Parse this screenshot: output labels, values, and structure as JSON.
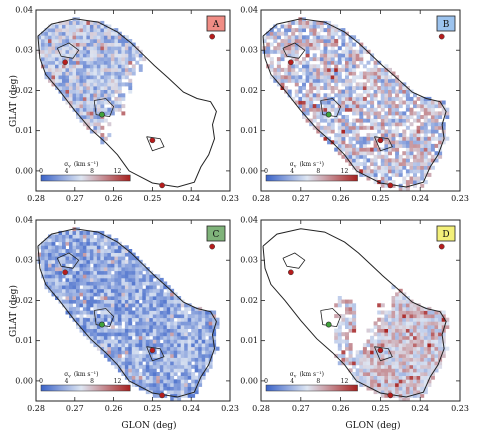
{
  "figure": {
    "xlabel": "GLON (deg)",
    "ylabel": "GLAT (deg)",
    "colorbar_label": "σ",
    "colorbar_label_sub": "v",
    "colorbar_label_unit": "(km s⁻¹)",
    "colorbar_ticks": [
      "0",
      "4",
      "8",
      "12"
    ]
  },
  "colors": {
    "panel_A": "#f08d85",
    "panel_B": "#9cc3ee",
    "panel_C": "#7fb37a",
    "panel_D": "#f3f07a",
    "map_low": "#3b63c8",
    "map_mid": "#dde5f2",
    "map_high": "#a8211f"
  },
  "chart_data": [
    {
      "type": "heatmap",
      "panel": "A",
      "xlabel": "",
      "ylabel": "GLAT (deg)",
      "xlim": [
        0.28,
        0.23
      ],
      "ylim": [
        -0.005,
        0.04
      ],
      "xticks": [
        "0.28",
        "0.27",
        "0.26",
        "0.25",
        "0.24",
        "0.23"
      ],
      "yticks": [
        "0.00",
        "0.01",
        "0.02",
        "0.03",
        "0.04"
      ],
      "colorbar": {
        "range": [
          0,
          14
        ],
        "ticks": [
          0,
          4,
          8,
          12
        ]
      },
      "coverage": "north-west part of the cloud only",
      "typical_sigma_kms": [
        2,
        8
      ]
    },
    {
      "type": "heatmap",
      "panel": "B",
      "xlabel": "",
      "ylabel": "",
      "xlim": [
        0.28,
        0.23
      ],
      "ylim": [
        -0.005,
        0.04
      ],
      "xticks": [
        "0.28",
        "0.27",
        "0.26",
        "0.25",
        "0.24",
        "0.23"
      ],
      "yticks": [
        "0.00",
        "0.01",
        "0.02",
        "0.03",
        "0.04"
      ],
      "colorbar": {
        "range": [
          0,
          14
        ],
        "ticks": [
          0,
          4,
          8,
          12
        ]
      },
      "coverage": "whole cloud",
      "typical_sigma_kms": [
        2,
        10
      ]
    },
    {
      "type": "heatmap",
      "panel": "C",
      "xlabel": "GLON (deg)",
      "ylabel": "GLAT (deg)",
      "xlim": [
        0.28,
        0.23
      ],
      "ylim": [
        -0.005,
        0.04
      ],
      "xticks": [
        "0.28",
        "0.27",
        "0.26",
        "0.25",
        "0.24",
        "0.23"
      ],
      "yticks": [
        "0.00",
        "0.01",
        "0.02",
        "0.03",
        "0.04"
      ],
      "colorbar": {
        "range": [
          0,
          14
        ],
        "ticks": [
          0,
          4,
          8,
          12
        ]
      },
      "coverage": "whole cloud",
      "typical_sigma_kms": [
        1,
        6
      ]
    },
    {
      "type": "heatmap",
      "panel": "D",
      "xlabel": "GLON (deg)",
      "ylabel": "",
      "xlim": [
        0.28,
        0.23
      ],
      "ylim": [
        -0.005,
        0.04
      ],
      "xticks": [
        "0.28",
        "0.27",
        "0.26",
        "0.25",
        "0.24",
        "0.23"
      ],
      "yticks": [
        "0.00",
        "0.01",
        "0.02",
        "0.03",
        "0.04"
      ],
      "colorbar": {
        "range": [
          0,
          14
        ],
        "ticks": [
          0,
          4,
          8,
          12
        ]
      },
      "coverage": "south-east part of the cloud only",
      "typical_sigma_kms": [
        4,
        10
      ]
    }
  ],
  "markers": {
    "red": [
      [
        0.2725,
        0.027
      ],
      [
        0.25,
        0.0076
      ],
      [
        0.2346,
        0.0334
      ],
      [
        0.2475,
        -0.0036
      ]
    ],
    "green": [
      [
        0.263,
        0.014
      ]
    ]
  },
  "cloud_outline": [
    [
      0.2795,
      0.0335
    ],
    [
      0.276,
      0.0365
    ],
    [
      0.27,
      0.0378
    ],
    [
      0.264,
      0.037
    ],
    [
      0.259,
      0.0345
    ],
    [
      0.2555,
      0.0318
    ],
    [
      0.2525,
      0.029
    ],
    [
      0.2495,
      0.0262
    ],
    [
      0.246,
      0.0232
    ],
    [
      0.242,
      0.0196
    ],
    [
      0.2385,
      0.018
    ],
    [
      0.235,
      0.0172
    ],
    [
      0.2335,
      0.0148
    ],
    [
      0.2345,
      0.0115
    ],
    [
      0.234,
      0.008
    ],
    [
      0.2355,
      0.004
    ],
    [
      0.2375,
      0.001
    ],
    [
      0.2392,
      -0.0028
    ],
    [
      0.2435,
      -0.004
    ],
    [
      0.25,
      -0.003
    ],
    [
      0.256,
      0.0
    ],
    [
      0.259,
      0.004
    ],
    [
      0.262,
      0.007
    ],
    [
      0.266,
      0.0105
    ],
    [
      0.27,
      0.015
    ],
    [
      0.274,
      0.02
    ],
    [
      0.2775,
      0.024
    ],
    [
      0.279,
      0.028
    ],
    [
      0.2795,
      0.0335
    ]
  ],
  "inner_contours": [
    [
      [
        0.2745,
        0.0305
      ],
      [
        0.2715,
        0.0318
      ],
      [
        0.269,
        0.03
      ],
      [
        0.2705,
        0.028
      ],
      [
        0.2735,
        0.0285
      ],
      [
        0.2745,
        0.0305
      ]
    ],
    [
      [
        0.265,
        0.0175
      ],
      [
        0.262,
        0.018
      ],
      [
        0.26,
        0.016
      ],
      [
        0.261,
        0.0135
      ],
      [
        0.2645,
        0.014
      ],
      [
        0.265,
        0.0175
      ]
    ],
    [
      [
        0.2515,
        0.0085
      ],
      [
        0.248,
        0.008
      ],
      [
        0.247,
        0.006
      ],
      [
        0.25,
        0.005
      ],
      [
        0.2515,
        0.0085
      ]
    ]
  ]
}
